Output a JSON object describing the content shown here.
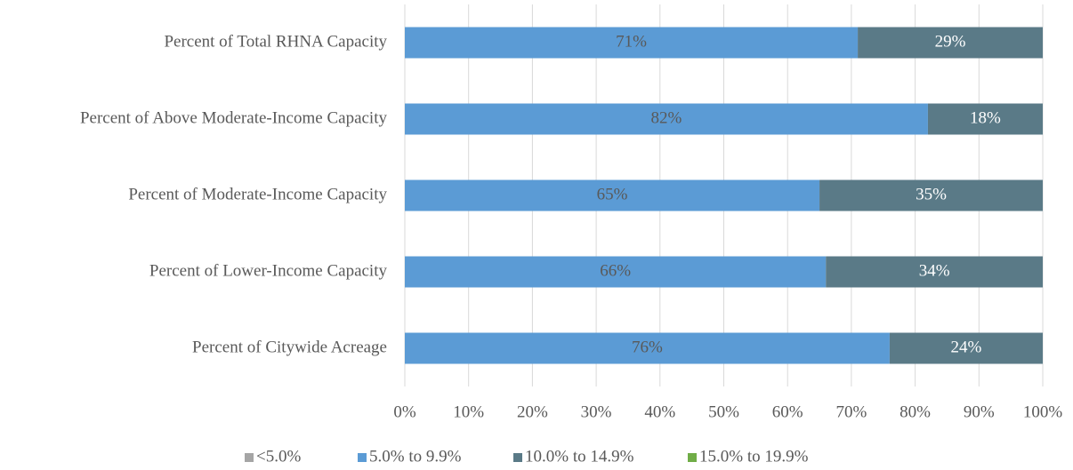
{
  "chart_data": {
    "type": "stacked_barh",
    "categories": [
      "Percent of Total RHNA Capacity",
      "Percent of Above Moderate-Income Capacity",
      "Percent of Moderate-Income Capacity",
      "Percent of Lower-Income Capacity",
      "Percent of Citywide Acreage"
    ],
    "series": [
      {
        "name": "<5.0%",
        "color": "#a5a5a5",
        "values": [
          0,
          0,
          0,
          0,
          0
        ]
      },
      {
        "name": "5.0% to 9.9%",
        "color": "#5b9bd5",
        "values": [
          71,
          82,
          65,
          66,
          76
        ],
        "value_labels": [
          "71%",
          "82%",
          "65%",
          "66%",
          "76%"
        ],
        "label_color": "#595959"
      },
      {
        "name": "10.0% to 14.9%",
        "color": "#5a7a87",
        "values": [
          29,
          18,
          35,
          34,
          24
        ],
        "value_labels": [
          "29%",
          "18%",
          "35%",
          "34%",
          "24%"
        ],
        "label_color": "#ffffff"
      },
      {
        "name": "15.0% to 19.9%",
        "color": "#70ad47",
        "values": [
          0,
          0,
          0,
          0,
          0
        ]
      }
    ],
    "xlim": [
      0,
      100
    ],
    "xticks": [
      {
        "value": 0,
        "label": "0%"
      },
      {
        "value": 10,
        "label": "10%"
      },
      {
        "value": 20,
        "label": "20%"
      },
      {
        "value": 30,
        "label": "30%"
      },
      {
        "value": 40,
        "label": "40%"
      },
      {
        "value": 50,
        "label": "50%"
      },
      {
        "value": 60,
        "label": "60%"
      },
      {
        "value": 70,
        "label": "70%"
      },
      {
        "value": 80,
        "label": "80%"
      },
      {
        "value": 90,
        "label": "90%"
      },
      {
        "value": 100,
        "label": "100%"
      }
    ],
    "grid": true,
    "legend": "bottom"
  }
}
